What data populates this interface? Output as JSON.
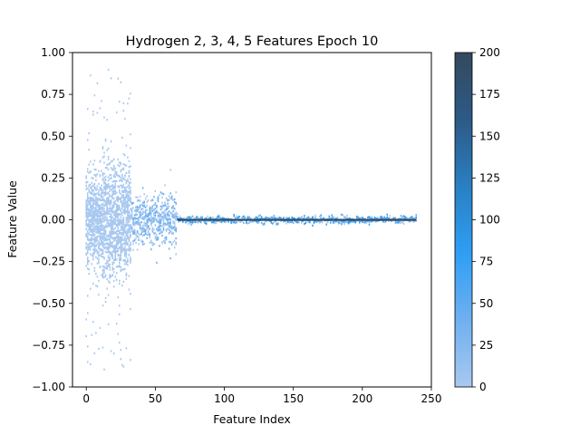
{
  "chart_data": {
    "type": "heatmap",
    "title": "Hydrogen 2, 3, 4, 5 Features Epoch 10",
    "xlabel": "Feature Index",
    "ylabel": "Feature Value",
    "xlim": [
      -10,
      250
    ],
    "ylim": [
      -1.0,
      1.0
    ],
    "xticks": [
      0,
      50,
      100,
      150,
      200,
      250
    ],
    "xtick_labels": [
      "0",
      "50",
      "100",
      "150",
      "200",
      "250"
    ],
    "yticks": [
      -1.0,
      -0.75,
      -0.5,
      -0.25,
      0.0,
      0.25,
      0.5,
      0.75,
      1.0
    ],
    "ytick_labels": [
      "−1.00",
      "−0.75",
      "−0.50",
      "−0.25",
      "0.00",
      "0.25",
      "0.50",
      "0.75",
      "1.00"
    ],
    "feature_count": 240,
    "x_range": [
      0,
      239
    ],
    "colorbar": {
      "range": [
        0,
        200
      ],
      "ticks": [
        0,
        25,
        50,
        75,
        100,
        125,
        150,
        175,
        200
      ],
      "tick_labels": [
        "0",
        "25",
        "50",
        "75",
        "100",
        "125",
        "150",
        "175",
        "200"
      ],
      "colors": [
        "#a8c8f0",
        "#6fb0f0",
        "#2f9ef5",
        "#2a7fc2",
        "#2c5a86",
        "#34495e"
      ]
    },
    "spread_regions": [
      {
        "x": [
          0,
          32
        ],
        "y": [
          -0.9,
          0.97
        ],
        "note": "wide scatter of low-count values"
      },
      {
        "x": [
          33,
          65
        ],
        "y": [
          -0.3,
          0.3
        ],
        "note": "moderate spread"
      },
      {
        "x": [
          66,
          239
        ],
        "y": [
          -0.04,
          0.04
        ],
        "note": "values concentrated near zero; dense line at 0.00"
      }
    ],
    "grid": false,
    "legend": "colorbar-right"
  }
}
